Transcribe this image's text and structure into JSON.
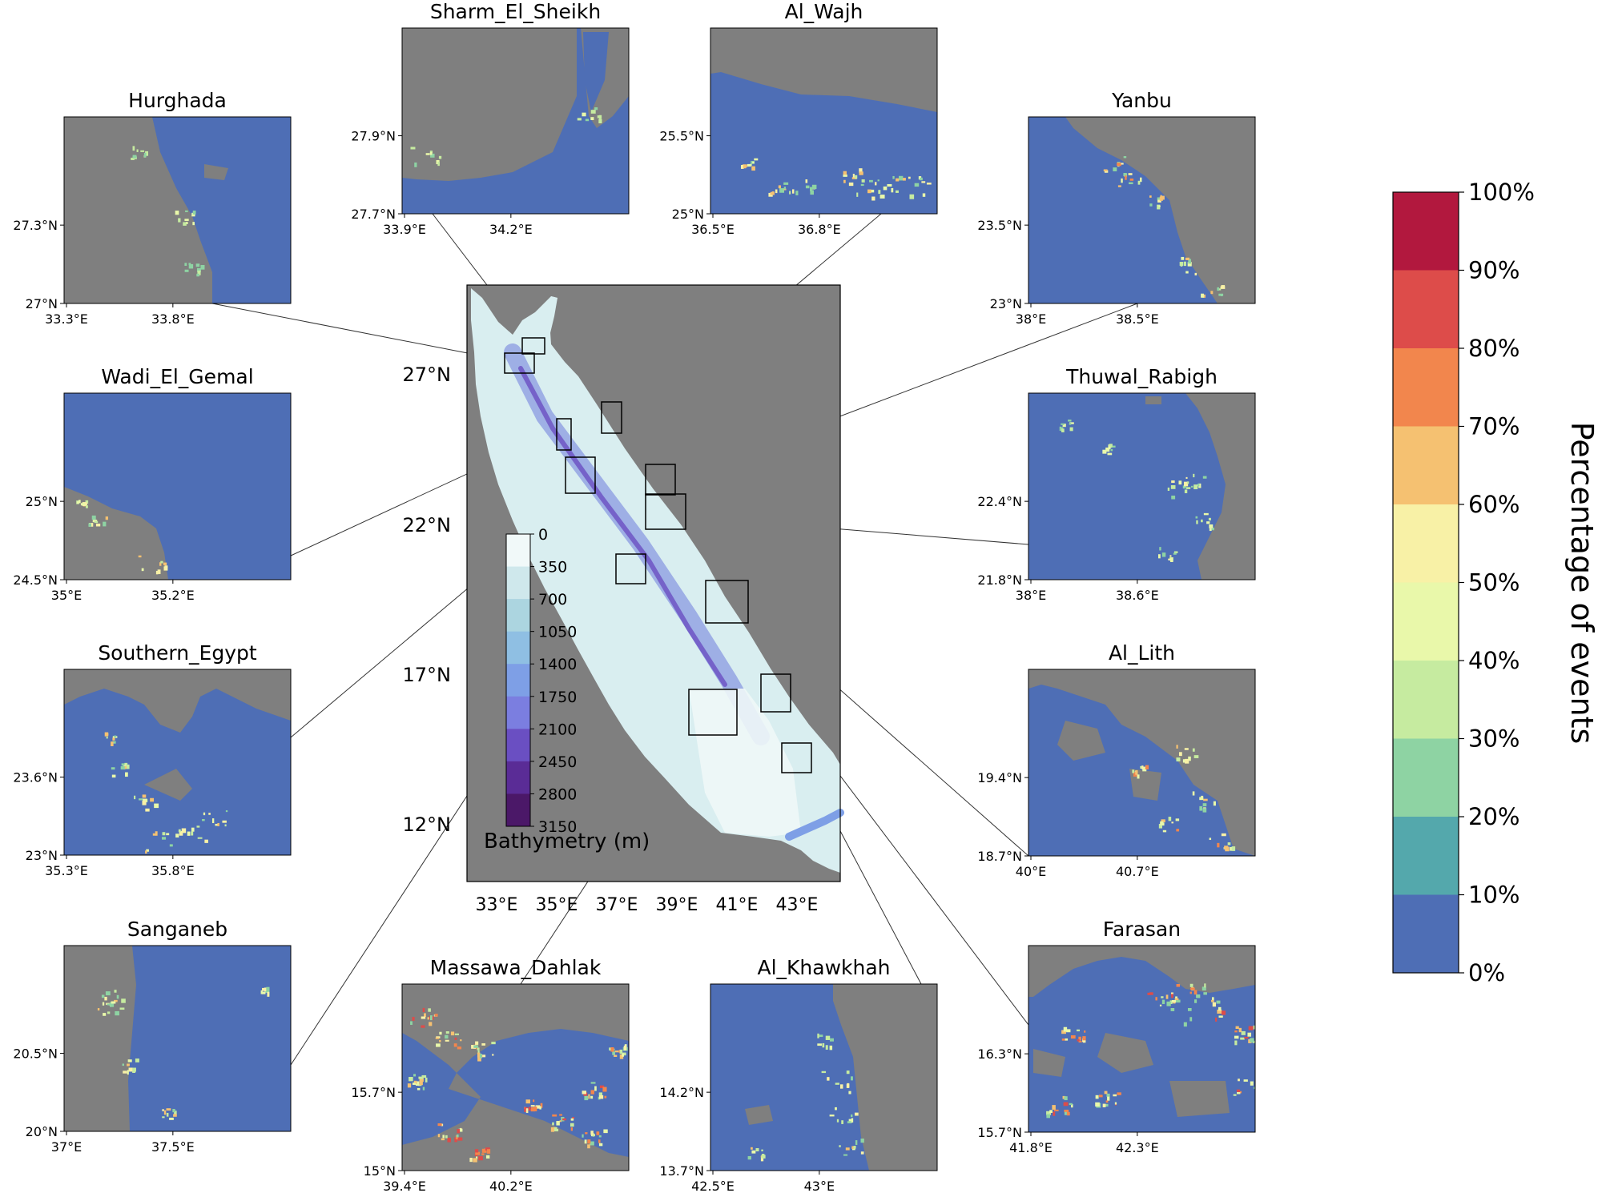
{
  "main_map": {
    "title": "",
    "lat_labels": [
      "27°N",
      "22°N",
      "17°N",
      "12°N"
    ],
    "lon_labels": [
      "33°E",
      "35°E",
      "37°E",
      "39°E",
      "41°E",
      "43°E"
    ],
    "bathymetry": {
      "label": "Bathymetry (m)",
      "ticks": [
        "0",
        "350",
        "700",
        "1050",
        "1400",
        "1750",
        "2100",
        "2450",
        "2800",
        "3150"
      ],
      "colors": [
        "#f1f9f9",
        "#cfe8ec",
        "#acd5e0",
        "#8fbfe3",
        "#7e9fe6",
        "#7b7ee0",
        "#6a4fc2",
        "#5a2c96",
        "#4b1868",
        "#330a36"
      ]
    },
    "land_color": "#7f7f7f",
    "sea_color": "#d9eef0"
  },
  "percentage_colorbar": {
    "label": "Percentage of events",
    "ticks": [
      "100%",
      "90%",
      "80%",
      "70%",
      "60%",
      "50%",
      "40%",
      "30%",
      "20%",
      "10%",
      "0%"
    ],
    "colors": [
      "#b2183e",
      "#dd4c4a",
      "#f2864d",
      "#f5c171",
      "#f8f1a6",
      "#e9f8aa",
      "#c6eba0",
      "#8ed3a3",
      "#54a8ac",
      "#4e6eb5"
    ]
  },
  "insets": [
    {
      "name": "Sharm_El_Sheikh",
      "y_ticks": [
        "27.9°N",
        "27.7°N"
      ],
      "x_ticks": [
        "33.9°E",
        "34.2°E"
      ]
    },
    {
      "name": "Al_Wajh",
      "y_ticks": [
        "25.5°N",
        "25°N"
      ],
      "x_ticks": [
        "36.5°E",
        "36.8°E"
      ]
    },
    {
      "name": "Hurghada",
      "y_ticks": [
        "27.3°N",
        "27°N"
      ],
      "x_ticks": [
        "33.3°E",
        "33.8°E"
      ]
    },
    {
      "name": "Yanbu",
      "y_ticks": [
        "23.5°N",
        "23°N"
      ],
      "x_ticks": [
        "38°E",
        "38.5°E"
      ]
    },
    {
      "name": "Wadi_El_Gemal",
      "y_ticks": [
        "25°N",
        "24.5°N"
      ],
      "x_ticks": [
        "35°E",
        "35.2°E"
      ]
    },
    {
      "name": "Thuwal_Rabigh",
      "y_ticks": [
        "22.4°N",
        "21.8°N"
      ],
      "x_ticks": [
        "38°E",
        "38.6°E"
      ]
    },
    {
      "name": "Southern_Egypt",
      "y_ticks": [
        "23.6°N",
        "23°N"
      ],
      "x_ticks": [
        "35.3°E",
        "35.8°E"
      ]
    },
    {
      "name": "Al_Lith",
      "y_ticks": [
        "19.4°N",
        "18.7°N"
      ],
      "x_ticks": [
        "40°E",
        "40.7°E"
      ]
    },
    {
      "name": "Sanganeb",
      "y_ticks": [
        "20.5°N",
        "20°N"
      ],
      "x_ticks": [
        "37°E",
        "37.5°E"
      ]
    },
    {
      "name": "Massawa_Dahlak",
      "y_ticks": [
        "15.7°N",
        "15°N"
      ],
      "x_ticks": [
        "39.4°E",
        "40.2°E"
      ]
    },
    {
      "name": "Al_Khawkhah",
      "y_ticks": [
        "14.2°N",
        "13.7°N"
      ],
      "x_ticks": [
        "42.5°E",
        "43°E"
      ]
    },
    {
      "name": "Farasan",
      "y_ticks": [
        "16.3°N",
        "15.7°N"
      ],
      "x_ticks": [
        "41.8°E",
        "42.3°E"
      ]
    }
  ]
}
